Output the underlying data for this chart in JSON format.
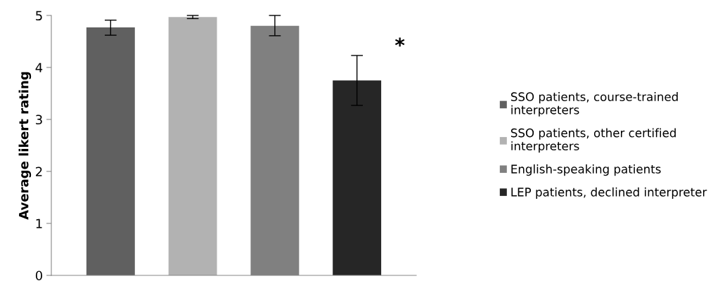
{
  "chart_data": {
    "type": "bar",
    "ylabel": "Average likert rating",
    "categories": [
      null
    ],
    "series": [
      {
        "name": "SSO patients, course-trained\ninterpreters",
        "color": "#606060",
        "values": [
          4.77
        ],
        "errors": [
          [
            4.62,
            4.91
          ]
        ]
      },
      {
        "name": "SSO patients, other certified\ninterpreters",
        "color": "#b2b2b2",
        "values": [
          4.97
        ],
        "errors": [
          [
            4.94,
            5.0
          ]
        ]
      },
      {
        "name": "English-speaking patients",
        "color": "#808080",
        "values": [
          4.8
        ],
        "errors": [
          [
            4.61,
            5.0
          ]
        ]
      },
      {
        "name": "LEP patients, declined interpreter",
        "color": "#262626",
        "values": [
          3.75
        ],
        "errors": [
          [
            3.27,
            4.23
          ]
        ]
      }
    ],
    "annotations": [
      "*"
    ],
    "ylim": [
      0,
      5
    ],
    "yticks": [
      0,
      1,
      2,
      3,
      4,
      5
    ],
    "grid": false,
    "legend": "right"
  }
}
